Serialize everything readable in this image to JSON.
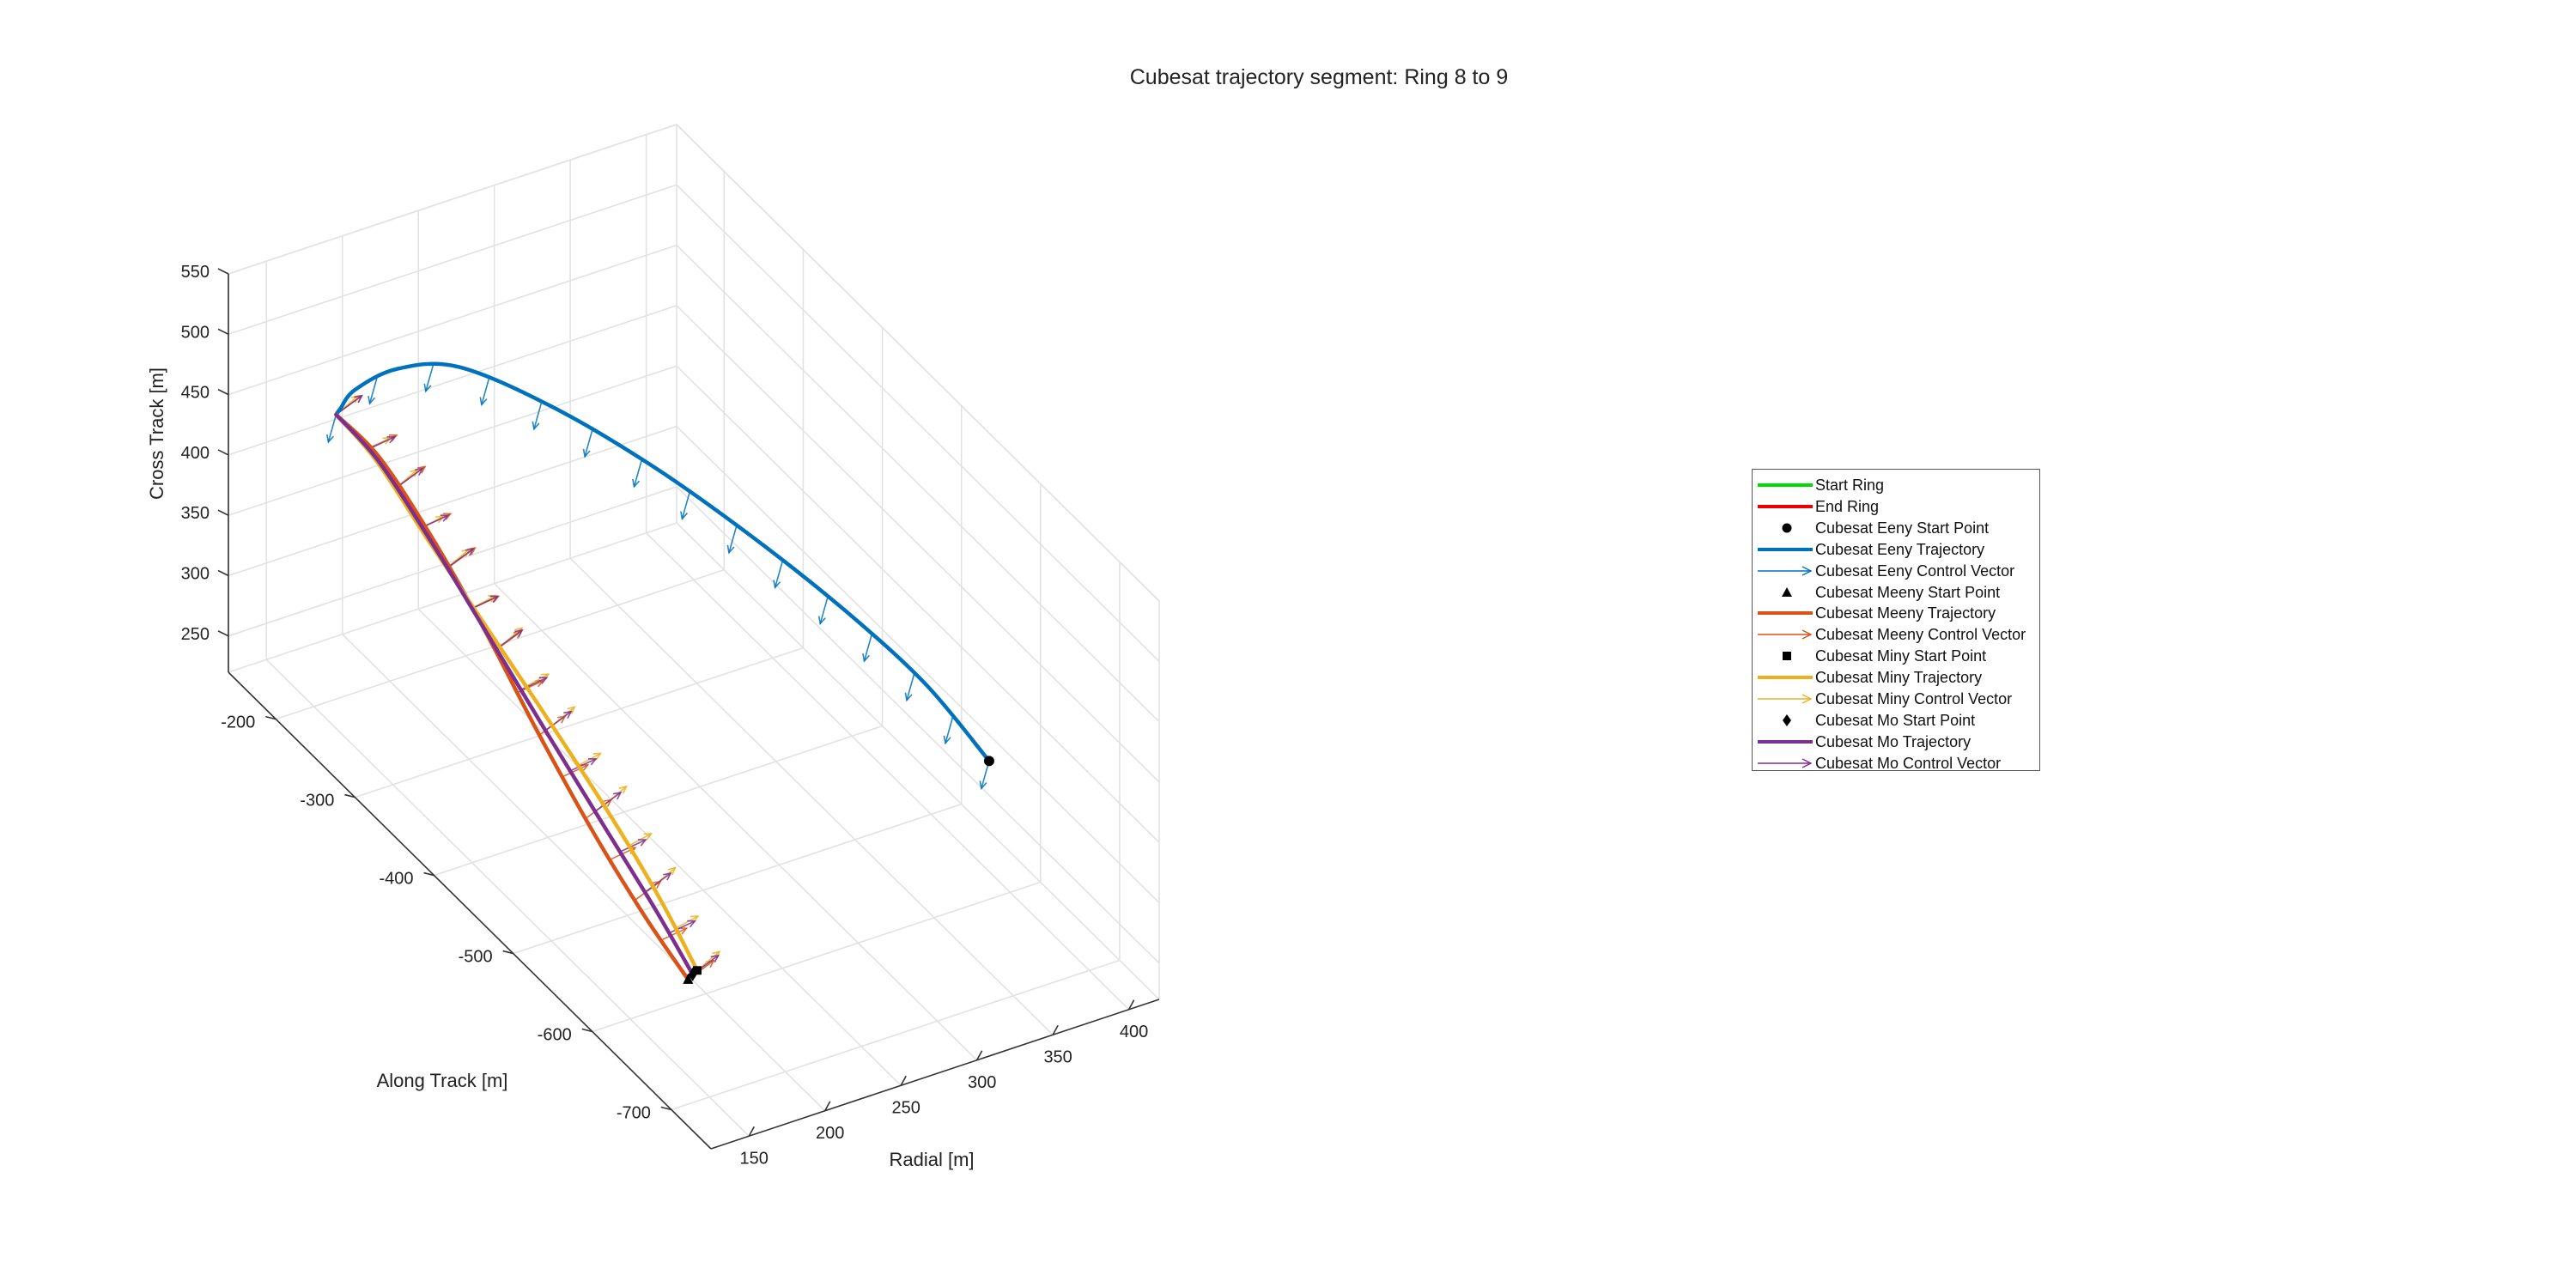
{
  "chart_data": {
    "type": "line3d",
    "title": "Cubesat trajectory segment: Ring 8 to 9",
    "xlabel": "Radial [m]",
    "ylabel": "Along Track [m]",
    "zlabel": "Cross Track [m]",
    "xlim": [
      125,
      420
    ],
    "ylim": [
      -750,
      -140
    ],
    "zlim": [
      220,
      550
    ],
    "xticks": [
      "150",
      "200",
      "250",
      "300",
      "350",
      "400"
    ],
    "yticks": [
      "-200",
      "-300",
      "-400",
      "-500",
      "-600",
      "-700"
    ],
    "zticks": [
      "250",
      "300",
      "350",
      "400",
      "450",
      "500",
      "550"
    ],
    "grid": true,
    "legend_position": "east",
    "series": [
      {
        "name": "Start Ring",
        "kind": "line",
        "color": "#00dd00"
      },
      {
        "name": "End Ring",
        "kind": "line",
        "color": "#ee0000"
      },
      {
        "name": "Cubesat Eeny Start Point",
        "kind": "marker",
        "marker": "circle",
        "color": "#000000"
      },
      {
        "name": "Cubesat Eeny Trajectory",
        "kind": "line",
        "color": "#0072bd"
      },
      {
        "name": "Cubesat Eeny Control Vector",
        "kind": "arrow",
        "color": "#0072bd"
      },
      {
        "name": "Cubesat Meeny Start Point",
        "kind": "marker",
        "marker": "triangle",
        "color": "#000000"
      },
      {
        "name": "Cubesat Meeny Trajectory",
        "kind": "line",
        "color": "#d95319"
      },
      {
        "name": "Cubesat Meeny Control Vector",
        "kind": "arrow",
        "color": "#d95319"
      },
      {
        "name": "Cubesat Miny Start Point",
        "kind": "marker",
        "marker": "square",
        "color": "#000000"
      },
      {
        "name": "Cubesat Miny Trajectory",
        "kind": "line",
        "color": "#edb120"
      },
      {
        "name": "Cubesat Miny Control Vector",
        "kind": "arrow",
        "color": "#edb120"
      },
      {
        "name": "Cubesat Mo Start Point",
        "kind": "marker",
        "marker": "diamond",
        "color": "#000000"
      },
      {
        "name": "Cubesat Mo Trajectory",
        "kind": "line",
        "color": "#7e2f8e"
      },
      {
        "name": "Cubesat Mo Control Vector",
        "kind": "arrow",
        "color": "#7e2f8e"
      }
    ],
    "trajectories": [
      {
        "name": "Cubesat Eeny",
        "color": "#0072bd",
        "points_xyz": [
          [
            407,
            -560,
            300
          ],
          [
            396,
            -500,
            330
          ],
          [
            375,
            -440,
            360
          ],
          [
            345,
            -380,
            395
          ],
          [
            310,
            -320,
            430
          ],
          [
            275,
            -260,
            455
          ],
          [
            240,
            -210,
            470
          ],
          [
            210,
            -190,
            468
          ],
          [
            185,
            -185,
            458
          ],
          [
            170,
            -195,
            455
          ],
          [
            162,
            -205,
            460
          ]
        ]
      },
      {
        "name": "Cubesat Meeny",
        "color": "#d95319",
        "points_xyz": [
          [
            162,
            -650,
            280
          ],
          [
            160,
            -600,
            300
          ],
          [
            158,
            -540,
            330
          ],
          [
            157,
            -470,
            370
          ],
          [
            158,
            -400,
            410
          ],
          [
            160,
            -330,
            440
          ],
          [
            162,
            -260,
            460
          ],
          [
            162,
            -205,
            460
          ]
        ]
      },
      {
        "name": "Cubesat Miny",
        "color": "#edb120",
        "points_xyz": [
          [
            168,
            -650,
            285
          ],
          [
            170,
            -600,
            310
          ],
          [
            169,
            -540,
            340
          ],
          [
            165,
            -470,
            375
          ],
          [
            160,
            -400,
            410
          ],
          [
            157,
            -330,
            440
          ],
          [
            160,
            -260,
            458
          ],
          [
            162,
            -205,
            460
          ]
        ]
      },
      {
        "name": "Cubesat Mo",
        "color": "#7e2f8e",
        "points_xyz": [
          [
            165,
            -650,
            283
          ],
          [
            166,
            -600,
            305
          ],
          [
            164,
            -540,
            335
          ],
          [
            161,
            -470,
            372
          ],
          [
            159,
            -400,
            408
          ],
          [
            159,
            -330,
            438
          ],
          [
            161,
            -260,
            458
          ],
          [
            162,
            -205,
            460
          ]
        ]
      }
    ]
  }
}
